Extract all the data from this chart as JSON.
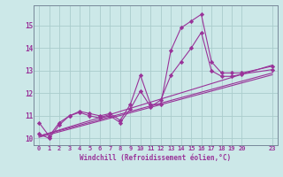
{
  "xlabel": "Windchill (Refroidissement éolien,°C)",
  "background_color": "#cce8e8",
  "grid_color": "#aacccc",
  "line_color": "#993399",
  "xlim": [
    -0.5,
    23.5
  ],
  "ylim": [
    9.7,
    15.9
  ],
  "xticks": [
    0,
    1,
    2,
    3,
    4,
    5,
    6,
    7,
    8,
    9,
    10,
    11,
    12,
    13,
    14,
    15,
    16,
    17,
    18,
    19,
    20,
    23
  ],
  "yticks": [
    10,
    11,
    12,
    13,
    14,
    15
  ],
  "lines": [
    {
      "x": [
        0,
        1,
        2,
        3,
        4,
        5,
        6,
        7,
        8,
        9,
        10,
        11,
        12,
        13,
        14,
        15,
        16,
        17,
        18,
        19,
        20,
        23
      ],
      "y": [
        10.7,
        10.1,
        10.7,
        11.0,
        11.2,
        11.1,
        11.0,
        11.1,
        10.8,
        11.5,
        12.8,
        11.5,
        11.5,
        13.9,
        14.9,
        15.2,
        15.5,
        13.4,
        12.9,
        12.9,
        12.9,
        13.2
      ],
      "has_markers": true
    },
    {
      "x": [
        0,
        1,
        2,
        3,
        4,
        5,
        6,
        7,
        8,
        9,
        10,
        11,
        12,
        13,
        14,
        15,
        16,
        17,
        18,
        19,
        20,
        23
      ],
      "y": [
        10.2,
        10.0,
        10.6,
        11.0,
        11.15,
        11.0,
        10.9,
        11.0,
        10.7,
        11.3,
        12.1,
        11.4,
        11.7,
        12.8,
        13.4,
        14.0,
        14.7,
        13.0,
        12.75,
        12.75,
        12.85,
        13.05
      ],
      "has_markers": true
    },
    {
      "x": [
        0,
        23
      ],
      "y": [
        10.1,
        13.25
      ],
      "has_markers": false
    },
    {
      "x": [
        0,
        23
      ],
      "y": [
        10.1,
        12.9
      ],
      "has_markers": false
    },
    {
      "x": [
        0,
        23
      ],
      "y": [
        10.05,
        12.82
      ],
      "has_markers": false
    }
  ],
  "marker": "D",
  "markersize": 2.2,
  "linewidth": 0.8,
  "tick_fontsize": 5.0,
  "xlabel_fontsize": 5.5
}
